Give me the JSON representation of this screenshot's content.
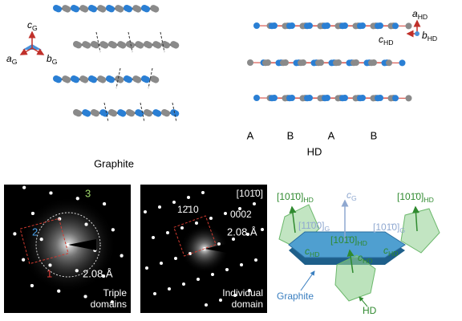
{
  "panels": {
    "graphite_structure": {
      "axes": [
        {
          "main": "c",
          "sub": "G"
        },
        {
          "main": "a",
          "sub": "G"
        },
        {
          "main": "b",
          "sub": "G"
        }
      ],
      "label": "Graphite"
    },
    "hd_structure": {
      "axes": [
        {
          "main": "a",
          "sub": "HD"
        },
        {
          "main": "b",
          "sub": "HD"
        },
        {
          "main": "c",
          "sub": "HD"
        }
      ],
      "stacking": [
        "A",
        "B",
        "A",
        "B"
      ],
      "label": "HD"
    },
    "diffraction_triple": {
      "spot_labels": [
        "3",
        "2",
        "1"
      ],
      "spacing": "2.08 Å",
      "caption": [
        "Triple",
        "domains"
      ]
    },
    "diffraction_individual": {
      "zone_axis": "[101̄0]",
      "spot_labels": [
        "12̄10",
        "0002"
      ],
      "spacing": "2.08 Å",
      "caption": [
        "Individual",
        "domain"
      ]
    },
    "orientation_model": {
      "labels": [
        {
          "main": "[101̄0]",
          "sub": "HD"
        },
        {
          "main": "c",
          "sub": "G"
        },
        {
          "main": "[101̄0]",
          "sub": "HD"
        },
        {
          "main": "[11̄00]",
          "sub": "G"
        },
        {
          "main": "[101̄0]",
          "sub": "G"
        },
        {
          "main": "[101̄0]",
          "sub": "HD"
        },
        {
          "main": "c",
          "sub": "HD"
        },
        {
          "main": "c",
          "sub": "HD"
        },
        {
          "main": "c",
          "sub": "HD"
        }
      ],
      "graphite_label": "Graphite",
      "hd_label": "HD"
    }
  }
}
